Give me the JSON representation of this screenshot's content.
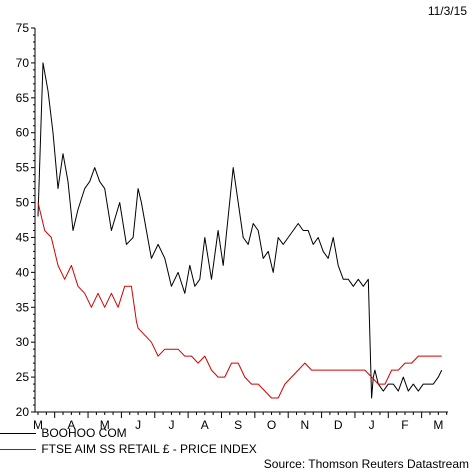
{
  "header": {
    "date": "11/3/15"
  },
  "footer": {
    "source": "Source: Thomson Reuters Datastream"
  },
  "chart_data": {
    "type": "line",
    "title": "",
    "xlabel": "",
    "ylabel": "",
    "ylim": [
      20,
      75
    ],
    "yticks": [
      20,
      25,
      30,
      35,
      40,
      45,
      50,
      55,
      60,
      65,
      70,
      75
    ],
    "xticks": [
      "M",
      "A",
      "M",
      "J",
      "J",
      "A",
      "S",
      "O",
      "N",
      "D",
      "J",
      "F",
      "M"
    ],
    "grid": false,
    "legend_position": "bottom-left",
    "series": [
      {
        "name": "BOOHOO COM",
        "color": "#000000",
        "x": [
          0,
          0.15,
          0.3,
          0.45,
          0.6,
          0.75,
          0.9,
          1.05,
          1.2,
          1.4,
          1.55,
          1.7,
          1.85,
          2.0,
          2.2,
          2.45,
          2.65,
          2.85,
          3.0,
          3.1,
          3.25,
          3.4,
          3.6,
          3.8,
          4.0,
          4.2,
          4.4,
          4.55,
          4.7,
          4.85,
          5.0,
          5.2,
          5.4,
          5.55,
          5.7,
          5.85,
          6.0,
          6.15,
          6.3,
          6.45,
          6.6,
          6.75,
          6.9,
          7.05,
          7.2,
          7.35,
          7.5,
          7.65,
          7.8,
          7.95,
          8.1,
          8.25,
          8.4,
          8.55,
          8.7,
          8.85,
          9.0,
          9.15,
          9.3,
          9.45,
          9.6,
          9.75,
          9.9,
          10.0,
          10.05,
          10.1,
          10.2,
          10.35,
          10.5,
          10.65,
          10.8,
          10.95,
          11.1,
          11.25,
          11.4,
          11.55,
          11.7,
          11.85,
          12.0,
          12.1
        ],
        "values": [
          48,
          70,
          66,
          60,
          52,
          57,
          53,
          46,
          49,
          52,
          53,
          55,
          53,
          52,
          46,
          50,
          44,
          45,
          52,
          50,
          46,
          42,
          44,
          42,
          38,
          40,
          37,
          41,
          38,
          39,
          45,
          39,
          46,
          41,
          48,
          55,
          50,
          45,
          44,
          47,
          46,
          42,
          43,
          40,
          45,
          44,
          45,
          46,
          47,
          46,
          46,
          44,
          45,
          43,
          42,
          45,
          41,
          39,
          39,
          38,
          39,
          38,
          39,
          22,
          25,
          26,
          24,
          23,
          24,
          24,
          23,
          25,
          23,
          24,
          23,
          24,
          24,
          24,
          25,
          26
        ]
      },
      {
        "name": "FTSE AIM SS RETAIL £ - PRICE INDEX",
        "color": "#d40000",
        "x": [
          0,
          0.2,
          0.4,
          0.6,
          0.8,
          1.0,
          1.2,
          1.4,
          1.6,
          1.8,
          2.0,
          2.2,
          2.4,
          2.6,
          2.8,
          2.95,
          3.0,
          3.2,
          3.4,
          3.6,
          3.8,
          4.0,
          4.2,
          4.4,
          4.6,
          4.8,
          5.0,
          5.2,
          5.4,
          5.6,
          5.8,
          6.0,
          6.2,
          6.4,
          6.6,
          6.8,
          7.0,
          7.2,
          7.4,
          7.6,
          7.8,
          8.0,
          8.2,
          8.4,
          8.6,
          8.8,
          9.0,
          9.2,
          9.4,
          9.6,
          9.8,
          10.0,
          10.2,
          10.4,
          10.6,
          10.8,
          11.0,
          11.2,
          11.4,
          11.6,
          11.8,
          12.0,
          12.1
        ],
        "values": [
          50,
          46,
          45,
          41,
          39,
          41,
          38,
          37,
          35,
          37,
          35,
          37,
          35,
          38,
          38,
          33,
          32,
          31,
          30,
          28,
          29,
          29,
          29,
          28,
          28,
          27,
          28,
          26,
          25,
          25,
          27,
          27,
          25,
          24,
          24,
          23,
          22,
          22,
          24,
          25,
          26,
          27,
          26,
          26,
          26,
          26,
          26,
          26,
          26,
          26,
          26,
          25,
          24,
          24,
          26,
          26,
          27,
          27,
          28,
          28,
          28,
          28,
          28
        ]
      }
    ]
  }
}
